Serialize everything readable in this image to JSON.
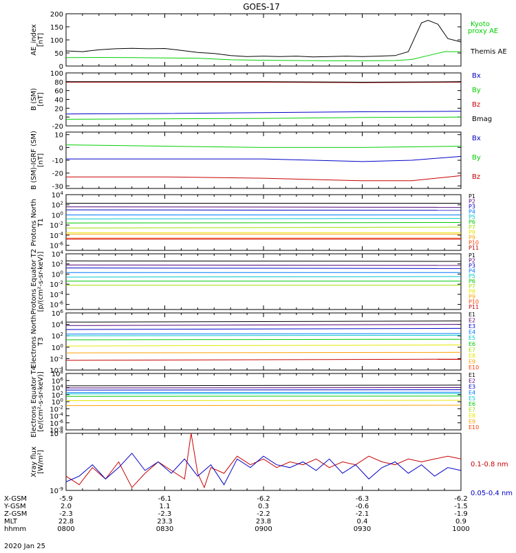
{
  "title": "GOES-17",
  "date": "2020 Jan 25",
  "colors": {
    "black": "#000000",
    "green": "#00d000",
    "blue": "#0000c8",
    "red": "#c80000",
    "p1": "#000000",
    "p2": "#500078",
    "p3": "#0000c8",
    "p4": "#0078ff",
    "p5": "#00c8c8",
    "p6": "#00c800",
    "p7": "#a0e000",
    "p8": "#e6e600",
    "p9": "#ffa000",
    "p10": "#ff3c00",
    "p11": "#c80000"
  },
  "time_axis": {
    "start": "0800",
    "end": "1000",
    "tick_minutes": [
      0,
      30,
      60,
      90,
      120
    ]
  },
  "chart_data": [
    {
      "type": "line",
      "id": "ae",
      "ylabel": "AE_index [nT]",
      "ylim": [
        0,
        200
      ],
      "yticks": [
        "0",
        "50",
        "100",
        "150",
        "200"
      ],
      "yvals": [
        0,
        50,
        100,
        150,
        200
      ],
      "series": [
        {
          "name": "Kyoto proxy AE",
          "color": "green",
          "x": [
            0,
            10,
            20,
            30,
            40,
            50,
            60,
            70,
            80,
            90,
            100,
            105,
            110,
            115,
            120
          ],
          "values": [
            32,
            33,
            32,
            31,
            30,
            24,
            22,
            21,
            20,
            20,
            21,
            25,
            40,
            55,
            55
          ]
        },
        {
          "name": "Themis AE",
          "color": "black",
          "x": [
            0,
            5,
            10,
            15,
            20,
            25,
            30,
            35,
            40,
            45,
            50,
            55,
            60,
            65,
            70,
            75,
            80,
            85,
            90,
            95,
            100,
            104,
            106,
            108,
            110,
            113,
            116,
            120
          ],
          "values": [
            58,
            55,
            62,
            66,
            68,
            66,
            67,
            60,
            52,
            48,
            40,
            36,
            38,
            36,
            38,
            35,
            36,
            38,
            36,
            38,
            40,
            55,
            110,
            165,
            175,
            160,
            105,
            92
          ]
        }
      ]
    },
    {
      "type": "line",
      "id": "bsm",
      "ylabel": "B (SM) [nT]",
      "ylim": [
        -20,
        100
      ],
      "yticks": [
        "-20",
        "0",
        "20",
        "40",
        "60",
        "80",
        "100"
      ],
      "yvals": [
        -20,
        0,
        20,
        40,
        60,
        80,
        100
      ],
      "legend": [
        "Bx",
        "By",
        "Bz",
        "Bmag"
      ],
      "series": [
        {
          "name": "Bx",
          "color": "blue",
          "x": [
            0,
            30,
            60,
            90,
            120
          ],
          "values": [
            7,
            8,
            10,
            12,
            13
          ]
        },
        {
          "name": "By",
          "color": "green",
          "x": [
            0,
            30,
            60,
            90,
            120
          ],
          "values": [
            -5,
            -4,
            -3,
            -1,
            0
          ]
        },
        {
          "name": "Bz",
          "color": "red",
          "x": [
            0,
            30,
            60,
            90,
            120
          ],
          "values": [
            79,
            79,
            79,
            78,
            79
          ]
        },
        {
          "name": "Bmag",
          "color": "black",
          "x": [
            0,
            30,
            60,
            90,
            120
          ],
          "values": [
            80,
            80,
            80,
            79,
            80
          ]
        }
      ]
    },
    {
      "type": "line",
      "id": "bigrf",
      "ylabel": "B (SM)-IGRF (SM) [nT]",
      "ylim": [
        -32,
        12
      ],
      "yticks": [
        "-30",
        "-20",
        "-10",
        "0",
        "10"
      ],
      "yvals": [
        -30,
        -20,
        -10,
        0,
        10
      ],
      "legend": [
        "Bx",
        "By",
        "Bz"
      ],
      "series": [
        {
          "name": "By",
          "color": "green",
          "x": [
            0,
            30,
            60,
            90,
            120
          ],
          "values": [
            2,
            1,
            0,
            0,
            1
          ]
        },
        {
          "name": "Bx",
          "color": "blue",
          "x": [
            0,
            30,
            60,
            90,
            105,
            120
          ],
          "values": [
            -9,
            -9,
            -9,
            -11,
            -10,
            -7
          ]
        },
        {
          "name": "Bz",
          "color": "red",
          "x": [
            0,
            30,
            60,
            90,
            105,
            120
          ],
          "values": [
            -23,
            -23,
            -24,
            -26,
            -26,
            -22
          ]
        }
      ]
    },
    {
      "type": "line",
      "id": "pn",
      "ylabel": "Protons North T1",
      "log": true,
      "ylim": [
        -7,
        4
      ],
      "yticks": [
        "10^4",
        "10^2",
        "10^0",
        "10^-2",
        "10^-4",
        "10^-6"
      ],
      "yvals": [
        4,
        2,
        0,
        -2,
        -4,
        -6
      ],
      "legend": [
        "P1",
        "P2",
        "P3",
        "P4",
        "P5",
        "P6",
        "P7",
        "P8",
        "P9",
        "P10",
        "P11"
      ],
      "levels": [
        2.3,
        1.5,
        0.8,
        0.0,
        -0.7,
        -1.5,
        -2.3,
        -3.2,
        -4.0,
        -4.8,
        -5.5
      ],
      "series": [
        {
          "name": "P1",
          "color": "p1",
          "values": [
            2.3,
            2.3
          ]
        },
        {
          "name": "P2",
          "color": "p2",
          "values": [
            1.6,
            1.5
          ]
        },
        {
          "name": "P3",
          "color": "p3",
          "values": [
            1.0,
            0.9
          ]
        },
        {
          "name": "P4",
          "color": "p4",
          "values": [
            0.0,
            0.0
          ]
        },
        {
          "name": "P5",
          "color": "p5",
          "values": [
            -0.8,
            -0.7
          ]
        },
        {
          "name": "P6",
          "color": "p6",
          "values": [
            -1.6,
            -1.5
          ]
        },
        {
          "name": "P7",
          "color": "p7",
          "values": [
            -2.6,
            -2.4
          ]
        },
        {
          "name": "P8",
          "color": "p8",
          "values": [
            -3.5,
            -3.5
          ]
        },
        {
          "name": "P9",
          "color": "p9",
          "values": [
            -3.8,
            -3.8
          ]
        },
        {
          "name": "P10",
          "color": "p10",
          "values": [
            -4.6,
            -4.6
          ]
        },
        {
          "name": "P11",
          "color": "p11",
          "values": [
            -4.8,
            -4.8
          ]
        }
      ]
    },
    {
      "type": "line",
      "id": "pe",
      "ylabel": "Protons Equator T2 [p/(cm²-s-sr-keV)]",
      "log": true,
      "ylim": [
        -7,
        4
      ],
      "yticks": [
        "10^4",
        "10^2",
        "10^0",
        "10^-2",
        "10^-4",
        "10^-6"
      ],
      "yvals": [
        4,
        2,
        0,
        -2,
        -4,
        -6
      ],
      "legend": [
        "P1",
        "P2",
        "P3",
        "P4",
        "P5",
        "P6",
        "P7",
        "P8",
        "P9",
        "P10",
        "P11"
      ],
      "series": [
        {
          "name": "P1",
          "color": "p1",
          "values": [
            2.6,
            2.5
          ]
        },
        {
          "name": "P2",
          "color": "p2",
          "values": [
            1.8,
            1.7
          ]
        },
        {
          "name": "P3",
          "color": "p3",
          "values": [
            1.2,
            1.1
          ]
        },
        {
          "name": "P4",
          "color": "p4",
          "values": [
            0.3,
            0.3
          ]
        },
        {
          "name": "P5",
          "color": "p5",
          "values": [
            -0.6,
            -0.5
          ]
        },
        {
          "name": "P6",
          "color": "p6",
          "values": [
            -1.4,
            -1.4
          ]
        },
        {
          "name": "P7",
          "color": "p7",
          "values": [
            -2.2,
            -2.2
          ]
        }
      ]
    },
    {
      "type": "line",
      "id": "en",
      "ylabel": "Electrons North T3",
      "log": true,
      "ylim": [
        -4,
        6
      ],
      "yticks": [
        "10^6",
        "10^4",
        "10^2",
        "10^0",
        "10^-2",
        "10^-4"
      ],
      "yvals": [
        6,
        4,
        2,
        0,
        -2,
        -4
      ],
      "legend": [
        "E1",
        "E2",
        "E3",
        "E4",
        "E5",
        "E6",
        "E7",
        "E8",
        "E9",
        "E10"
      ],
      "series": [
        {
          "name": "E1",
          "color": "p1",
          "values": [
            4.4,
            4.6
          ]
        },
        {
          "name": "E2",
          "color": "p2",
          "values": [
            3.8,
            4.0
          ]
        },
        {
          "name": "E3",
          "color": "p3",
          "values": [
            3.1,
            3.3
          ]
        },
        {
          "name": "E4",
          "color": "p4",
          "values": [
            2.3,
            2.4
          ]
        },
        {
          "name": "E5",
          "color": "p5",
          "values": [
            2.0,
            2.1
          ]
        },
        {
          "name": "E6",
          "color": "p6",
          "values": [
            1.3,
            1.4
          ]
        },
        {
          "name": "E7",
          "color": "p8",
          "values": [
            0.2,
            0.4
          ]
        },
        {
          "name": "E8",
          "color": "p9",
          "values": [
            -1.0,
            -0.9
          ]
        },
        {
          "name": "E9",
          "color": "p11",
          "values": [
            -2.3,
            -2.1
          ]
        }
      ]
    },
    {
      "type": "line",
      "id": "ee",
      "ylabel": "Electrons Equator T4 [e/(cm²-s-sr-keV)]",
      "log": true,
      "ylim": [
        -8,
        8
      ],
      "yticks": [
        "10^8",
        "10^6",
        "10^4",
        "10^2",
        "10^0",
        "10^-2",
        "10^-4",
        "10^-6",
        "10^-8"
      ],
      "yvals": [
        8,
        6,
        4,
        2,
        0,
        -2,
        -4,
        -6,
        -8
      ],
      "legend": [
        "E1",
        "E2",
        "E3",
        "E4",
        "E5",
        "E6",
        "E7",
        "E8",
        "E9",
        "E10"
      ],
      "series": [
        {
          "name": "E1",
          "color": "p1",
          "values": [
            4.5,
            4.7
          ]
        },
        {
          "name": "E2",
          "color": "p2",
          "values": [
            3.9,
            4.0
          ]
        },
        {
          "name": "E3",
          "color": "p3",
          "values": [
            3.3,
            3.4
          ]
        },
        {
          "name": "E4",
          "color": "p4",
          "values": [
            2.6,
            2.7
          ]
        },
        {
          "name": "E5",
          "color": "p5",
          "values": [
            2.2,
            2.3
          ]
        },
        {
          "name": "E6",
          "color": "p6",
          "values": [
            1.5,
            1.6
          ]
        },
        {
          "name": "E7",
          "color": "p8",
          "values": [
            0.3,
            0.4
          ]
        },
        {
          "name": "E8",
          "color": "p9",
          "values": [
            -1.1,
            -1.0
          ]
        }
      ]
    },
    {
      "type": "line",
      "id": "xray",
      "ylabel": "Xray flux [W/m²]",
      "log": true,
      "ylim": [
        -9,
        -8
      ],
      "yticks": [
        "10^-8",
        "10^-9"
      ],
      "yvals": [
        -8,
        -9
      ],
      "legend": [
        "0.1-0.8 nm",
        "0.05-0.4 nm"
      ],
      "series": [
        {
          "name": "0.1-0.8 nm",
          "color": "red",
          "x": [
            0,
            4,
            8,
            12,
            16,
            20,
            24,
            28,
            32,
            36,
            38,
            40,
            42,
            44,
            48,
            52,
            56,
            60,
            64,
            68,
            72,
            76,
            80,
            84,
            88,
            92,
            96,
            100,
            104,
            108,
            112,
            116,
            120
          ],
          "values": [
            -8.75,
            -8.9,
            -8.6,
            -8.8,
            -8.5,
            -8.95,
            -8.7,
            -8.5,
            -8.65,
            -8.8,
            -8.0,
            -8.7,
            -8.95,
            -8.6,
            -8.7,
            -8.4,
            -8.55,
            -8.45,
            -8.6,
            -8.5,
            -8.55,
            -8.45,
            -8.6,
            -8.5,
            -8.55,
            -8.4,
            -8.5,
            -8.55,
            -8.45,
            -8.5,
            -8.45,
            -8.4,
            -8.45
          ]
        },
        {
          "name": "0.05-0.4 nm",
          "color": "blue",
          "x": [
            0,
            4,
            8,
            12,
            16,
            20,
            24,
            28,
            32,
            36,
            40,
            44,
            48,
            52,
            56,
            60,
            64,
            68,
            72,
            76,
            80,
            84,
            88,
            92,
            96,
            100,
            104,
            108,
            112,
            116,
            120
          ],
          "values": [
            -8.85,
            -8.75,
            -8.55,
            -8.8,
            -8.6,
            -8.35,
            -8.65,
            -8.5,
            -8.7,
            -8.45,
            -8.75,
            -8.55,
            -8.9,
            -8.45,
            -8.6,
            -8.4,
            -8.55,
            -8.6,
            -8.5,
            -8.65,
            -8.45,
            -8.7,
            -8.55,
            -8.8,
            -8.6,
            -8.5,
            -8.7,
            -8.55,
            -8.75,
            -8.6,
            -8.65
          ]
        }
      ]
    }
  ],
  "ephemeris": {
    "rows": [
      {
        "label": "X-GSM",
        "values": [
          "-5.9",
          "-6.1",
          "-6.2",
          "-6.3",
          "-6.2"
        ]
      },
      {
        "label": "Y-GSM",
        "values": [
          "2.0",
          "1.1",
          "0.3",
          "-0.6",
          "-1.5"
        ]
      },
      {
        "label": "Z-GSM",
        "values": [
          "-2.3",
          "-2.3",
          "-2.2",
          "-2.1",
          "-1.9"
        ]
      },
      {
        "label": "MLT",
        "values": [
          "22.8",
          "23.3",
          "23.8",
          "0.4",
          "0.9"
        ]
      },
      {
        "label": "hhmm",
        "values": [
          "0800",
          "0830",
          "0900",
          "0930",
          "1000"
        ]
      }
    ]
  }
}
